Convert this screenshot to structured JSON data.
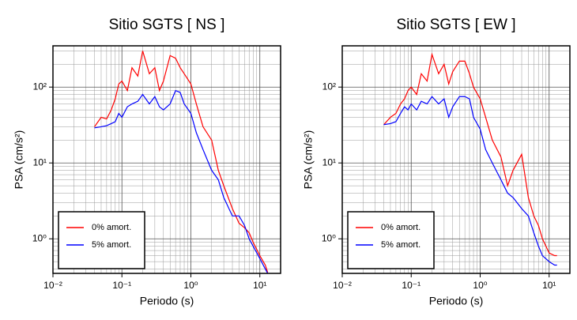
{
  "chart_data": [
    {
      "type": "line",
      "title": "Sitio SGTS [ NS ]",
      "xlabel": "Periodo (s)",
      "ylabel": "PSA (cm/s²)",
      "log_x": true,
      "log_y": true,
      "grid": true,
      "legend": "lower left",
      "xlim": [
        0.01,
        20
      ],
      "ylim": [
        0.35,
        350
      ],
      "xticks": [
        {
          "value": 0.01,
          "label": "10⁻²"
        },
        {
          "value": 0.1,
          "label": "10⁻¹"
        },
        {
          "value": 1,
          "label": "10⁰"
        },
        {
          "value": 10,
          "label": "10¹"
        }
      ],
      "yticks": [
        {
          "value": 1,
          "label": "10⁰"
        },
        {
          "value": 10,
          "label": "10¹"
        },
        {
          "value": 100,
          "label": "10²"
        }
      ],
      "x": [
        0.04,
        0.05,
        0.06,
        0.07,
        0.08,
        0.09,
        0.1,
        0.12,
        0.14,
        0.17,
        0.2,
        0.25,
        0.3,
        0.35,
        0.4,
        0.5,
        0.6,
        0.7,
        0.8,
        1,
        1.2,
        1.5,
        2,
        2.5,
        3,
        4,
        5,
        6,
        7,
        8,
        10,
        12,
        13
      ],
      "series": [
        {
          "name": "0% amort.",
          "color": "#ff0000",
          "values": [
            30,
            40,
            38,
            50,
            70,
            110,
            120,
            90,
            180,
            140,
            300,
            150,
            180,
            90,
            120,
            260,
            240,
            180,
            150,
            110,
            60,
            30,
            20,
            8,
            5,
            2.5,
            1.6,
            1.4,
            1.2,
            0.9,
            0.6,
            0.45,
            0.36
          ]
        },
        {
          "name": "5% amort.",
          "color": "#0000ff",
          "values": [
            29,
            30,
            31,
            33,
            35,
            45,
            40,
            55,
            60,
            65,
            80,
            60,
            75,
            55,
            50,
            60,
            90,
            85,
            60,
            45,
            25,
            15,
            8,
            6,
            3.5,
            2,
            2,
            1.5,
            1,
            0.8,
            0.55,
            0.4,
            0.35
          ]
        }
      ]
    },
    {
      "type": "line",
      "title": "Sitio SGTS [ EW ]",
      "xlabel": "Periodo (s)",
      "ylabel": "PSA (cm/s²)",
      "log_x": true,
      "log_y": true,
      "grid": true,
      "legend": "lower left",
      "xlim": [
        0.01,
        20
      ],
      "ylim": [
        0.35,
        350
      ],
      "xticks": [
        {
          "value": 0.01,
          "label": "10⁻²"
        },
        {
          "value": 0.1,
          "label": "10⁻¹"
        },
        {
          "value": 1,
          "label": "10⁰"
        },
        {
          "value": 10,
          "label": "10¹"
        }
      ],
      "yticks": [
        {
          "value": 1,
          "label": "10⁰"
        },
        {
          "value": 10,
          "label": "10¹"
        },
        {
          "value": 100,
          "label": "10²"
        }
      ],
      "x": [
        0.04,
        0.05,
        0.06,
        0.07,
        0.08,
        0.09,
        0.1,
        0.12,
        0.14,
        0.17,
        0.2,
        0.25,
        0.3,
        0.35,
        0.4,
        0.5,
        0.6,
        0.7,
        0.8,
        1,
        1.2,
        1.5,
        2,
        2.5,
        3,
        4,
        5,
        6,
        7,
        8,
        10,
        12,
        13
      ],
      "series": [
        {
          "name": "0% amort.",
          "color": "#ff0000",
          "values": [
            32,
            40,
            45,
            60,
            70,
            90,
            100,
            80,
            150,
            120,
            270,
            150,
            200,
            110,
            160,
            220,
            220,
            150,
            100,
            70,
            40,
            20,
            12,
            5,
            8,
            13,
            3.5,
            2,
            1.5,
            1,
            0.65,
            0.6,
            0.6
          ]
        },
        {
          "name": "5% amort.",
          "color": "#0000ff",
          "values": [
            32,
            33,
            35,
            45,
            55,
            50,
            60,
            50,
            65,
            60,
            75,
            60,
            70,
            40,
            55,
            75,
            75,
            70,
            40,
            28,
            15,
            10,
            6,
            4,
            3.5,
            2.5,
            2,
            1.2,
            0.8,
            0.6,
            0.5,
            0.45,
            0.45
          ]
        }
      ]
    }
  ]
}
